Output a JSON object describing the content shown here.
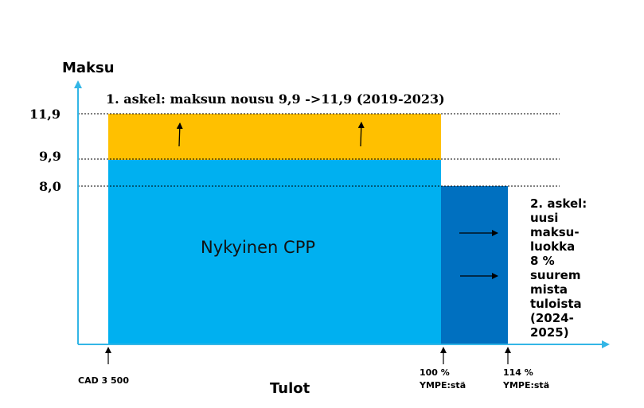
{
  "axis": {
    "y_label": "Maksu",
    "x_label": "Tulot",
    "y_ticks": [
      "11,9",
      "9,9",
      "8,0"
    ],
    "x_ticks": [
      {
        "lines": [
          "CAD 3 500"
        ]
      },
      {
        "lines": [
          "100 %",
          "YMPE:stä"
        ]
      },
      {
        "lines": [
          "114 %",
          "YMPE:stä"
        ]
      }
    ]
  },
  "step1": {
    "text": "1. askel: maksun nousu 9,9 ->11,9 (2019-2023)"
  },
  "step2": {
    "lines": [
      "2. askel:",
      "uusi",
      "maksu-",
      "luokka",
      "8 %",
      "suurem",
      "mista",
      "tuloista",
      "(2024-",
      "2025)"
    ]
  },
  "blocks": {
    "current_label": "Nykyinen CPP"
  },
  "colors": {
    "axis": "#33b6e6",
    "current_cpp": "#00b0f0",
    "increase": "#ffc000",
    "new_tier": "#0070c0",
    "text": "#000000"
  },
  "icons": {
    "up_arrow": "arrow-up-icon",
    "right_arrow": "arrow-right-icon"
  }
}
